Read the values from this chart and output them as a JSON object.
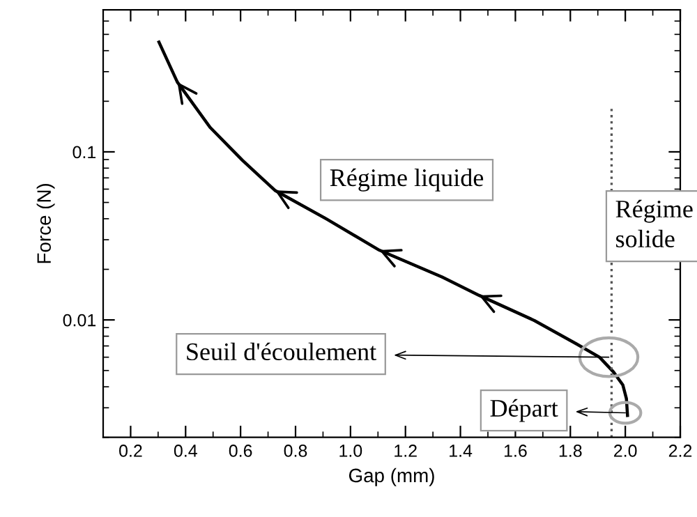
{
  "chart_data": {
    "type": "line",
    "xlabel": "Gap (mm)",
    "ylabel": "Force (N)",
    "x": [
      0.303,
      0.37,
      0.489,
      0.607,
      0.725,
      0.911,
      1.105,
      1.333,
      1.468,
      1.67,
      1.822,
      1.906,
      1.957,
      1.991,
      2.004,
      2.008
    ],
    "series": [
      {
        "color": "#000000",
        "values": [
          0.45,
          0.26,
          0.14,
          0.089,
          0.059,
          0.04,
          0.026,
          0.018,
          0.014,
          0.0099,
          0.0072,
          0.006,
          0.0049,
          0.0041,
          0.0034,
          0.0027
        ]
      }
    ],
    "log": "y",
    "xlim": [
      0.1,
      2.2
    ],
    "ylim": [
      0.002,
      0.7
    ],
    "xticks": [
      0.2,
      0.4,
      0.6,
      0.8,
      {
        "value": 1,
        "label": "1.0"
      },
      1.2,
      1.4,
      1.6,
      1.8,
      {
        "value": 2,
        "label": "2.0"
      },
      2.2
    ],
    "yticks": [
      0.01,
      0.1
    ],
    "ref_lines": [
      {
        "axis": "x",
        "value": 1.95,
        "color": "#555555",
        "line_style": "dotted"
      }
    ],
    "annotations": [
      "Régime liquide",
      "Régime\nsolide",
      {
        "text": "Seuil d'écoulement",
        "x": 1.94,
        "y": 0.006
      },
      {
        "text": "Départ",
        "x": 2.0,
        "y": 0.0028
      }
    ],
    "grid": false,
    "legend": false,
    "marker": "none",
    "line_style": "solid"
  }
}
